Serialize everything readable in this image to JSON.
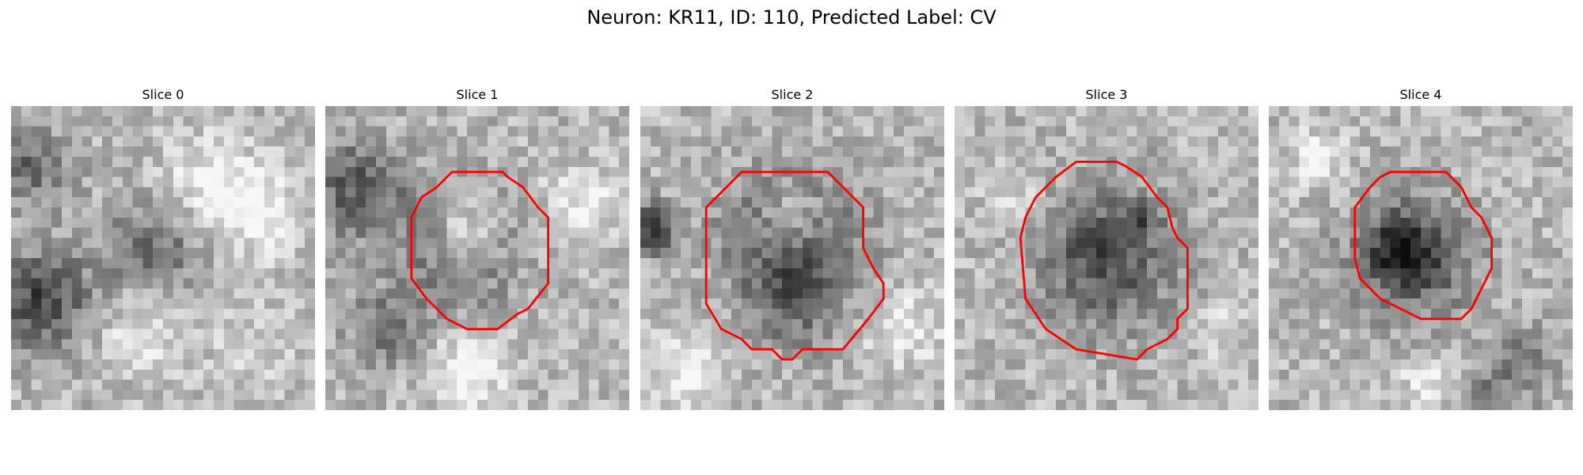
{
  "figure": {
    "title": "Neuron: KR11, ID: 110, Predicted Label: CV"
  },
  "panels": [
    {
      "title": "Slice 0",
      "has_contour": false
    },
    {
      "title": "Slice 1",
      "has_contour": true
    },
    {
      "title": "Slice 2",
      "has_contour": true
    },
    {
      "title": "Slice 3",
      "has_contour": true
    },
    {
      "title": "Slice 4",
      "has_contour": true
    }
  ],
  "colors": {
    "contour": "#ff0000",
    "background": "#ffffff"
  }
}
